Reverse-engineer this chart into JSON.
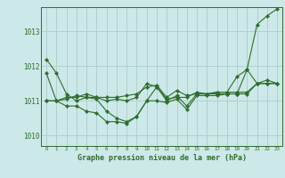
{
  "background_color": "#cde8e8",
  "grid_color": "#b0d0d0",
  "line_color": "#2d6e2d",
  "marker_color": "#2d6e2d",
  "title": "Graphe pression niveau de la mer (hPa)",
  "yticks": [
    1010,
    1011,
    1012,
    1013
  ],
  "ylim": [
    1009.7,
    1013.7
  ],
  "xlim": [
    -0.5,
    23.5
  ],
  "series": [
    [
      1012.2,
      1011.8,
      1011.2,
      1011.0,
      1011.1,
      1011.05,
      1010.7,
      1010.5,
      1010.4,
      1010.55,
      1011.0,
      1011.4,
      1011.0,
      1011.15,
      1010.85,
      1011.2,
      1011.2,
      1011.2,
      1011.2,
      1011.2,
      1011.9,
      1013.2,
      1013.45,
      1013.65
    ],
    [
      1011.8,
      1011.0,
      1011.1,
      1011.1,
      1011.2,
      1011.1,
      1011.0,
      1011.05,
      1011.0,
      1011.1,
      1011.5,
      1011.4,
      1011.05,
      1011.1,
      1011.1,
      1011.25,
      1011.2,
      1011.25,
      1011.25,
      1011.7,
      1011.9,
      1011.5,
      1011.5,
      1011.5
    ],
    [
      1011.0,
      1011.0,
      1011.05,
      1011.15,
      1011.1,
      1011.1,
      1011.1,
      1011.1,
      1011.15,
      1011.2,
      1011.4,
      1011.45,
      1011.1,
      1011.3,
      1011.15,
      1011.2,
      1011.2,
      1011.25,
      1011.25,
      1011.25,
      1011.25,
      1011.5,
      1011.5,
      1011.5
    ],
    [
      1011.0,
      1011.0,
      1010.85,
      1010.85,
      1010.7,
      1010.65,
      1010.4,
      1010.4,
      1010.35,
      1010.55,
      1011.0,
      1011.0,
      1010.95,
      1011.05,
      1010.75,
      1011.15,
      1011.15,
      1011.15,
      1011.2,
      1011.2,
      1011.2,
      1011.5,
      1011.6,
      1011.5
    ]
  ]
}
